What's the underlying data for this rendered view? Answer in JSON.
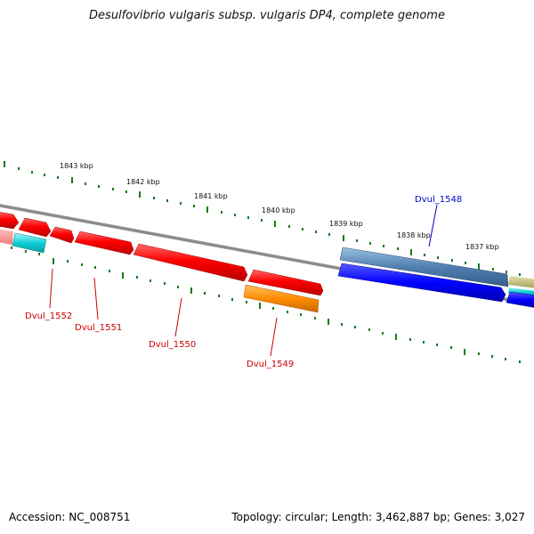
{
  "header": {
    "title": "Desulfovibrio vulgaris subsp. vulgaris DP4, complete genome"
  },
  "footer": {
    "accession": "Accession: NC_008751",
    "summary": "Topology: circular; Length: 3,462,887 bp; Genes: 3,027"
  },
  "ruler": {
    "labels": [
      "1843 kbp",
      "1842 kbp",
      "1841 kbp",
      "1840 kbp",
      "1839 kbp",
      "1838 kbp",
      "1837 kbp"
    ]
  },
  "genes": {
    "dvul_1548": "Dvul_1548",
    "dvul_1549": "Dvul_1549",
    "dvul_1550": "Dvul_1550",
    "dvul_1551": "Dvul_1551",
    "dvul_1552": "Dvul_1552"
  },
  "colors": {
    "red_gene": "#ff0000",
    "orange_gene": "#ff8c00",
    "blue_gene": "#0000ff",
    "steelblue_gene": "#4f7fb0",
    "cyan_gene": "#10d0d8",
    "tick": "#1a7a1a",
    "backbone": "#8a8a8a",
    "label_red": "#cc0000",
    "label_blue": "#0000cc"
  }
}
